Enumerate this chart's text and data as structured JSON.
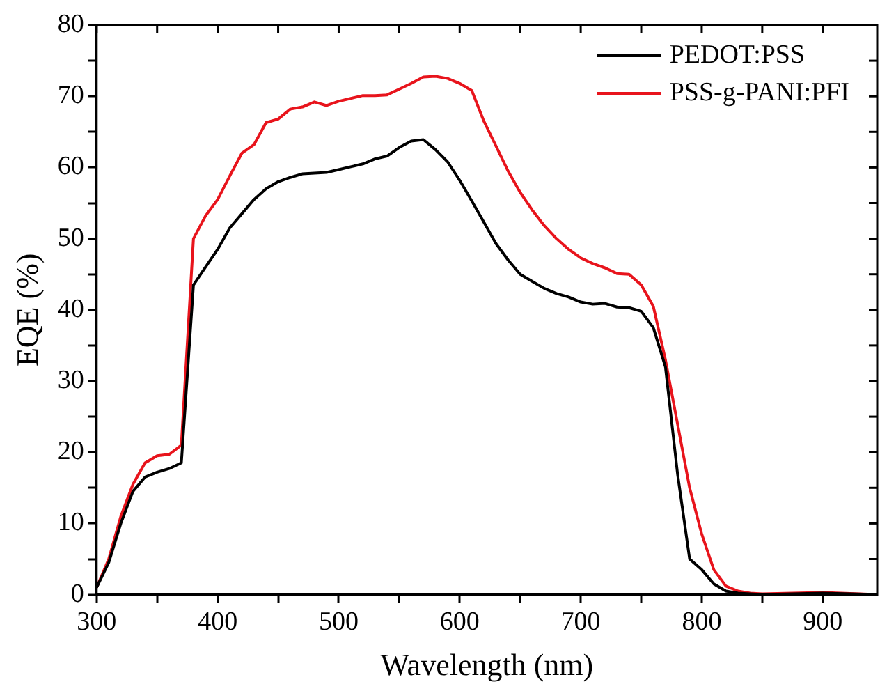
{
  "chart_data": {
    "type": "line",
    "xlabel": "Wavelength (nm)",
    "ylabel": "EQE (%)",
    "x": [
      300,
      310,
      320,
      330,
      340,
      350,
      360,
      370,
      380,
      390,
      400,
      410,
      420,
      430,
      440,
      450,
      460,
      470,
      480,
      490,
      500,
      510,
      520,
      530,
      540,
      550,
      560,
      570,
      580,
      590,
      600,
      610,
      620,
      630,
      640,
      650,
      660,
      670,
      680,
      690,
      700,
      710,
      720,
      730,
      740,
      750,
      760,
      770,
      780,
      790,
      800,
      810,
      820,
      830,
      840,
      850,
      900,
      945
    ],
    "series": [
      {
        "name": "PEDOT:PSS",
        "color": "#000000",
        "values": [
          1,
          4.5,
          10,
          14.5,
          16.5,
          17.2,
          17.7,
          18.5,
          43.5,
          46,
          48.5,
          51.5,
          53.5,
          55.5,
          57,
          58,
          58.6,
          59.1,
          59.2,
          59.3,
          59.7,
          60.1,
          60.5,
          61.2,
          61.6,
          62.8,
          63.7,
          63.9,
          62.5,
          60.8,
          58.2,
          55.3,
          52.3,
          49.3,
          47,
          45,
          44,
          43,
          42.3,
          41.8,
          41.1,
          40.8,
          40.9,
          40.4,
          40.3,
          39.8,
          37.5,
          32,
          17,
          5,
          3.5,
          1.5,
          0.5,
          0.2,
          0.1,
          0,
          0.2,
          0
        ]
      },
      {
        "name": "PSS-g-PANI:PFI",
        "color": "#e8141c",
        "values": [
          1,
          5,
          11,
          15.5,
          18.5,
          19.5,
          19.7,
          21,
          50,
          53.2,
          55.5,
          58.8,
          62,
          63.2,
          66.3,
          66.8,
          68.2,
          68.5,
          69.2,
          68.7,
          69.3,
          69.7,
          70.1,
          70.1,
          70.2,
          71,
          71.8,
          72.7,
          72.8,
          72.5,
          71.8,
          70.8,
          66.5,
          63,
          59.5,
          56.5,
          54,
          51.8,
          50,
          48.5,
          47.3,
          46.5,
          45.9,
          45.1,
          45,
          43.5,
          40.5,
          33,
          24,
          15,
          8.5,
          3.5,
          1.2,
          0.5,
          0.2,
          0.1,
          0.3,
          0
        ]
      }
    ],
    "xlim": [
      300,
      945
    ],
    "xticks": [
      300,
      {
        "value": 350,
        "label": null
      },
      400,
      {
        "value": 450,
        "label": null
      },
      500,
      {
        "value": 550,
        "label": null
      },
      600,
      {
        "value": 650,
        "label": null
      },
      700,
      {
        "value": 750,
        "label": null
      },
      800,
      {
        "value": 850,
        "label": null
      },
      900
    ],
    "ylim": [
      0,
      80
    ],
    "yticks": [
      0,
      {
        "value": 5,
        "label": null
      },
      10,
      {
        "value": 15,
        "label": null
      },
      20,
      {
        "value": 25,
        "label": null
      },
      30,
      {
        "value": 35,
        "label": null
      },
      40,
      {
        "value": 45,
        "label": null
      },
      50,
      {
        "value": 55,
        "label": null
      },
      60,
      {
        "value": 65,
        "label": null
      },
      70,
      {
        "value": 75,
        "label": null
      },
      80
    ],
    "grid": false,
    "legend": "top right",
    "marker": "none",
    "line_style": "solid"
  }
}
